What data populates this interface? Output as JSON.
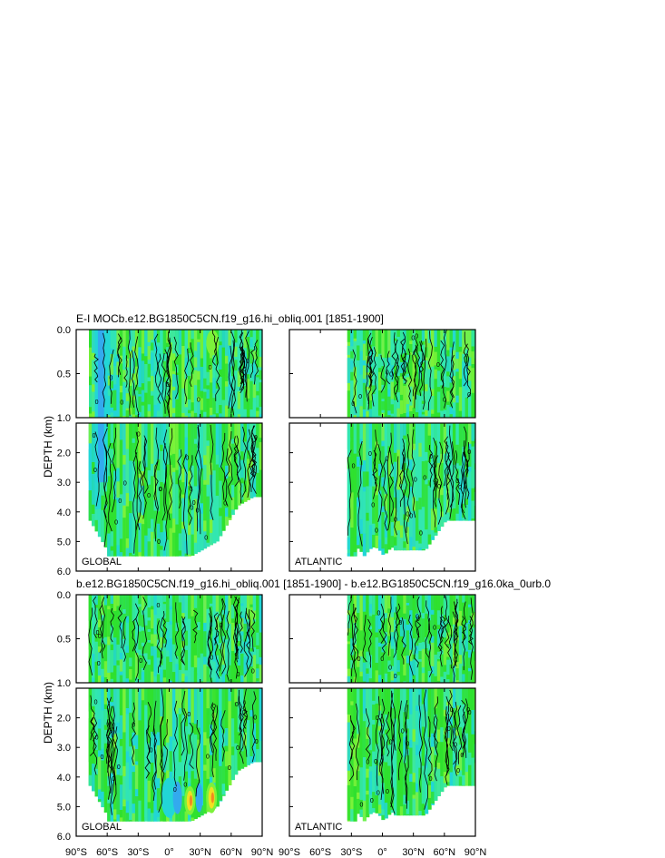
{
  "chart_data": {
    "type": "contour",
    "titles": {
      "top": "E-I MOCb.e12.BG1850C5CN.f19_g16.hi_obliq.001 [1851-1900]",
      "bottom": "b.e12.BG1850C5CN.f19_g16.hi_obliq.001 [1851-1900] - b.e12.BG1850C5CN.f19_g16.0ka_0urb.0"
    },
    "ylabel": "DEPTH (km)",
    "x_ticks": [
      "90°S",
      "60°S",
      "30°S",
      "0°",
      "30°N",
      "60°N",
      "90°N"
    ],
    "x_values": [
      -90,
      -60,
      -30,
      0,
      30,
      60,
      90
    ],
    "upper_y_ticks": [
      "0.0",
      "0.5",
      "1.0"
    ],
    "upper_y_values": [
      0.0,
      0.5,
      1.0
    ],
    "lower_y_ticks": [
      "2.0",
      "3.0",
      "4.0",
      "5.0",
      "6.0"
    ],
    "lower_y_values": [
      2.0,
      3.0,
      4.0,
      5.0,
      6.0
    ],
    "upper_ylim": [
      0.0,
      1.0
    ],
    "lower_ylim": [
      1.0,
      6.0
    ],
    "xlim": [
      -90,
      90
    ],
    "region_labels": {
      "global": "GLOBAL",
      "atlantic": "ATLANTIC"
    },
    "atlantic_start_lat": -34,
    "contour_label_zero": "0",
    "colors": {
      "fill_green": "#2fe02f",
      "fill_light_green": "#7cf23a",
      "fill_teal": "#33e6b0",
      "fill_cyan": "#22d6d6",
      "fill_blue": "#33aaee",
      "fill_yellow": "#f0e020",
      "fill_orange": "#f08a20",
      "line": "#000000"
    }
  }
}
